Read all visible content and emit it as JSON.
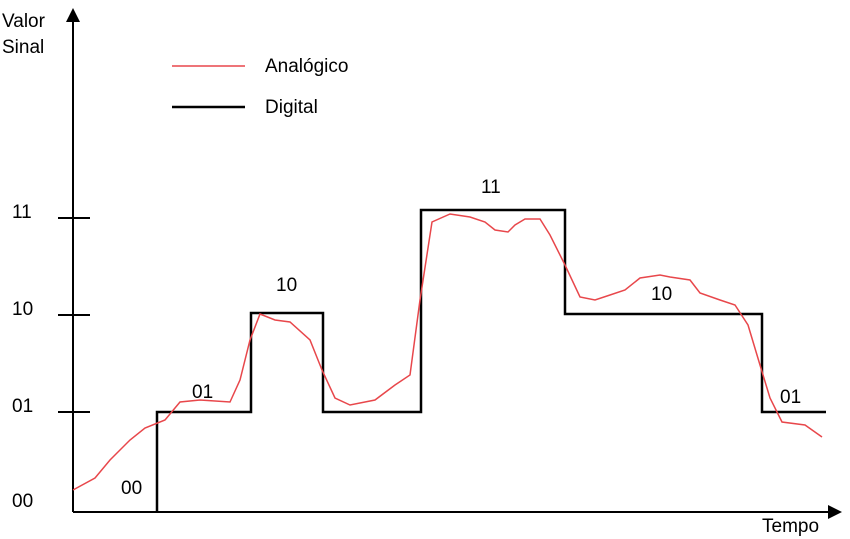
{
  "axes": {
    "y_label": [
      "Valor",
      "Sinal"
    ],
    "x_label": "Tempo",
    "ticks": [
      "11",
      "10",
      "01",
      "00"
    ]
  },
  "legend": [
    "Analógico",
    "Digital"
  ],
  "segments": [
    "00",
    "01",
    "10",
    "11",
    "10",
    "01"
  ]
}
